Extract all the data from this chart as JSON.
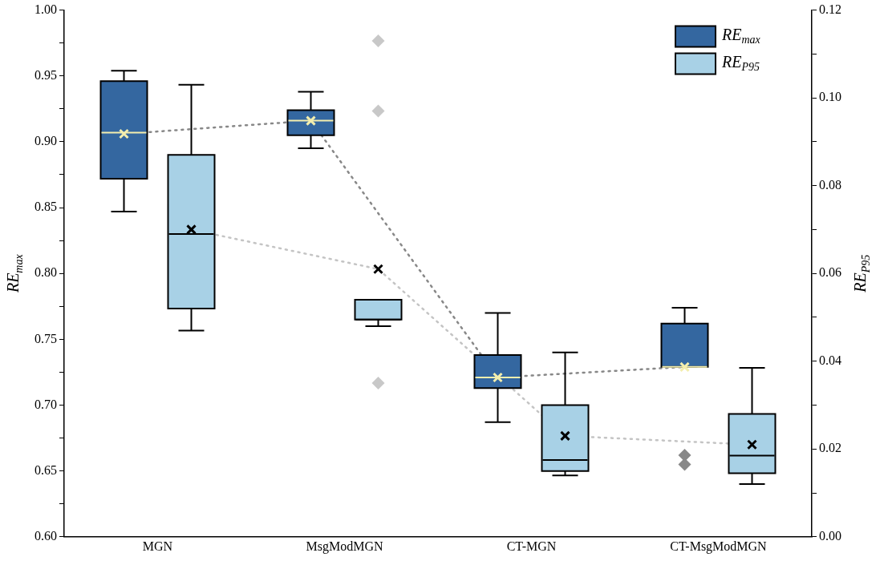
{
  "chart_data": {
    "type": "box",
    "categories": [
      "MGN",
      "MsgModMGN",
      "CT-MGN",
      "CT-MsgModMGN"
    ],
    "ylabel": "RE$_{max}$",
    "y2label": "RE$_{P95}$",
    "ylim": [
      0.6,
      1.0
    ],
    "yticks": [
      {
        "value": 0.6,
        "label": "0.60"
      },
      {
        "value": 0.625,
        "label": null
      },
      {
        "value": 0.65,
        "label": "0.65"
      },
      {
        "value": 0.675,
        "label": null
      },
      {
        "value": 0.7,
        "label": "0.70"
      },
      {
        "value": 0.725,
        "label": null
      },
      {
        "value": 0.75,
        "label": "0.75"
      },
      {
        "value": 0.775,
        "label": null
      },
      {
        "value": 0.8,
        "label": "0.80"
      },
      {
        "value": 0.825,
        "label": null
      },
      {
        "value": 0.85,
        "label": "0.85"
      },
      {
        "value": 0.875,
        "label": null
      },
      {
        "value": 0.9,
        "label": "0.90"
      },
      {
        "value": 0.925,
        "label": null
      },
      {
        "value": 0.95,
        "label": "0.95"
      },
      {
        "value": 0.975,
        "label": null
      },
      {
        "value": 1.0,
        "label": "1.00"
      }
    ],
    "y2lim": [
      0,
      0.12
    ],
    "y2ticks": [
      {
        "value": 0,
        "label": "0.00"
      },
      {
        "value": 0.01,
        "label": null
      },
      {
        "value": 0.02,
        "label": "0.02"
      },
      {
        "value": 0.03,
        "label": null
      },
      {
        "value": 0.04,
        "label": "0.04"
      },
      {
        "value": 0.05,
        "label": null
      },
      {
        "value": 0.06,
        "label": "0.06"
      },
      {
        "value": 0.07,
        "label": null
      },
      {
        "value": 0.08,
        "label": "0.08"
      },
      {
        "value": 0.09,
        "label": null
      },
      {
        "value": 0.1,
        "label": "0.10"
      },
      {
        "value": 0.11,
        "label": null
      },
      {
        "value": 0.12,
        "label": "0.12"
      }
    ],
    "grid": false,
    "legend": "top right",
    "series": [
      {
        "name": "RE$_{max}$",
        "type": "box",
        "color": "#3467a0",
        "boxes": [
          {
            "low": 0.847,
            "q1": 0.872,
            "median": 0.907,
            "q3": 0.946,
            "high": 0.954,
            "mean": 0.906
          },
          {
            "low": 0.895,
            "q1": 0.905,
            "median": 0.916,
            "q3": 0.924,
            "high": 0.938,
            "mean": 0.916
          },
          {
            "low": 0.687,
            "q1": 0.713,
            "median": 0.721,
            "q3": 0.738,
            "high": 0.77,
            "mean": 0.721
          },
          {
            "low": 0.729,
            "q1": 0.729,
            "median": 0.729,
            "q3": 0.762,
            "high": 0.774,
            "mean": 0.729,
            "outliers": [
              0.662,
              0.655
            ]
          }
        ]
      },
      {
        "name": "RE$_{P95}$",
        "type": "box",
        "axis": "y2",
        "color": "#a8d1e6",
        "boxes": [
          {
            "low": 0.047,
            "q1": 0.052,
            "median": 0.069,
            "q3": 0.087,
            "high": 0.103,
            "mean": 0.07
          },
          {
            "low": 0.048,
            "q1": 0.0495,
            "median": 0.0495,
            "q3": 0.054,
            "high": 0.054,
            "mean": 0.061,
            "outliers": [
              0.113,
              0.097,
              0.035
            ]
          },
          {
            "low": 0.014,
            "q1": 0.015,
            "median": 0.0175,
            "q3": 0.03,
            "high": 0.042,
            "mean": 0.023
          },
          {
            "low": 0.012,
            "q1": 0.0145,
            "median": 0.0185,
            "q3": 0.028,
            "high": 0.0385,
            "mean": 0.021
          }
        ]
      },
      {
        "type": "line",
        "color": "#888888",
        "line_style": "dotted",
        "marker": "none",
        "values": [
          0.906,
          0.916,
          0.721,
          0.729
        ]
      },
      {
        "type": "line",
        "axis": "y2",
        "color": "#c4c4c4",
        "line_style": "dotted",
        "marker": "none",
        "values": [
          0.07,
          0.061,
          0.023,
          0.021
        ]
      }
    ]
  }
}
